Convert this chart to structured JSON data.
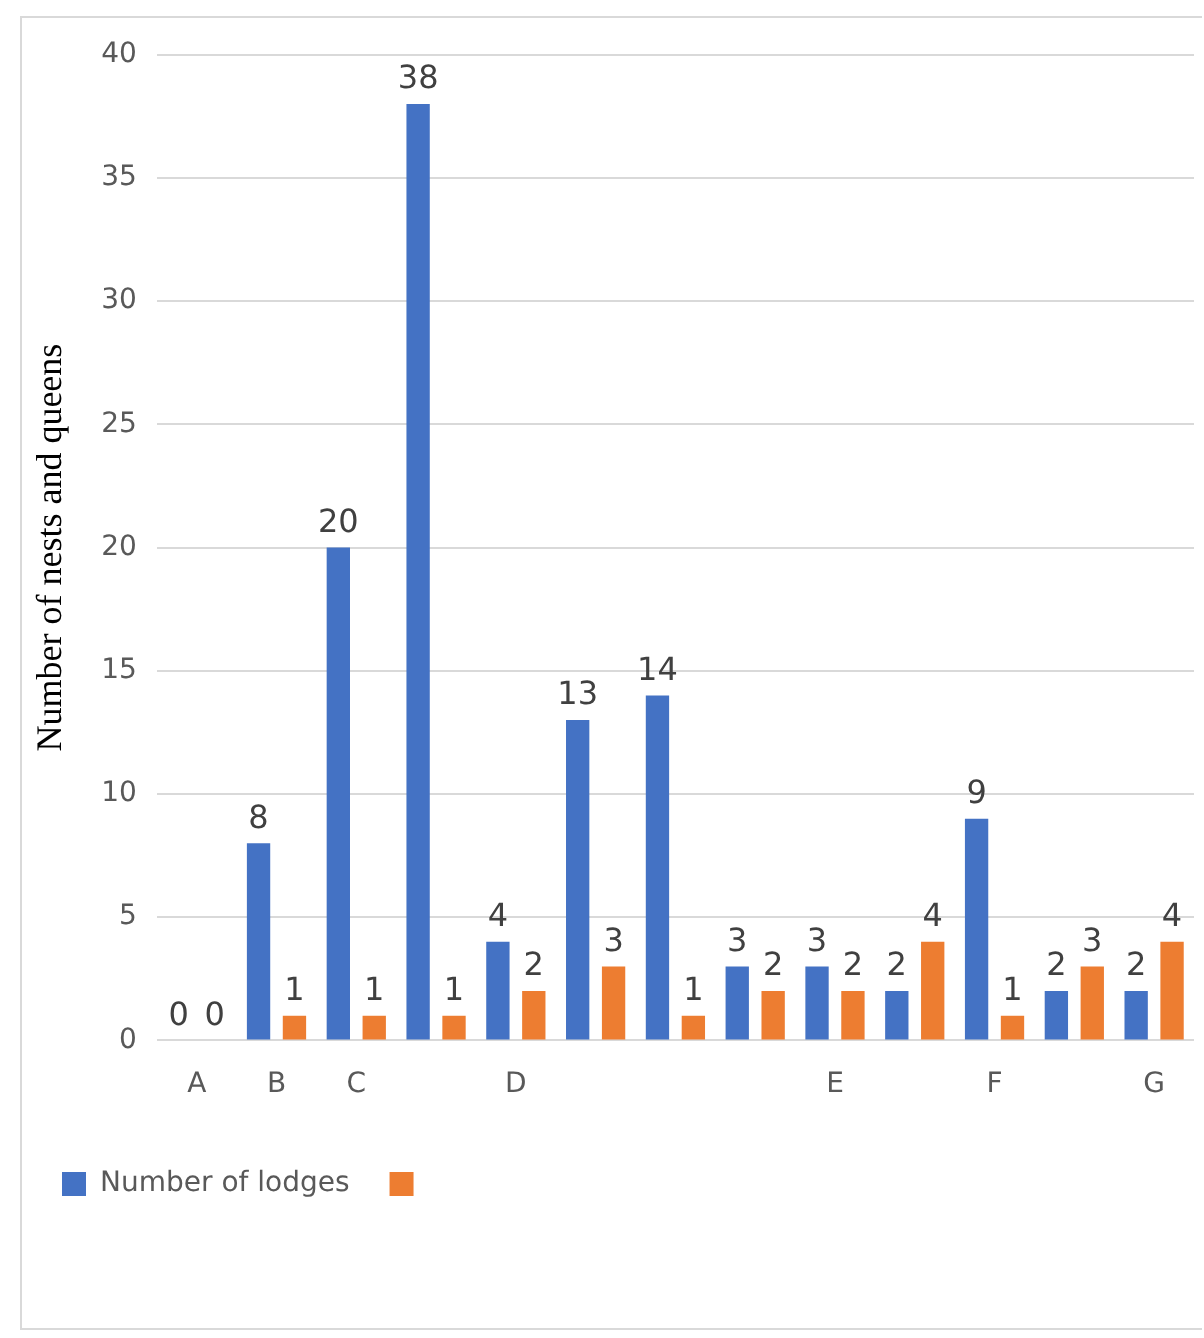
{
  "chart_data": {
    "type": "bar",
    "ylabel": "Number of nests and queens",
    "categories": [
      "A",
      "B",
      "C",
      null,
      "D",
      null,
      null,
      null,
      "E",
      null,
      "F",
      null,
      "G"
    ],
    "series": [
      {
        "name": "Number of lodges",
        "color": "#4472c4",
        "values": [
          0,
          8,
          20,
          38,
          4,
          13,
          14,
          3,
          3,
          2,
          9,
          2,
          2
        ]
      },
      {
        "color": "#ed7d31",
        "values": [
          0,
          1,
          1,
          1,
          2,
          3,
          1,
          2,
          2,
          4,
          1,
          3,
          4
        ]
      }
    ],
    "ylim": [
      0,
      40
    ],
    "yticks": [
      0,
      5,
      10,
      15,
      20,
      25,
      30,
      35,
      40
    ],
    "grid": "y",
    "legend": "bottom",
    "data_labels": true
  }
}
